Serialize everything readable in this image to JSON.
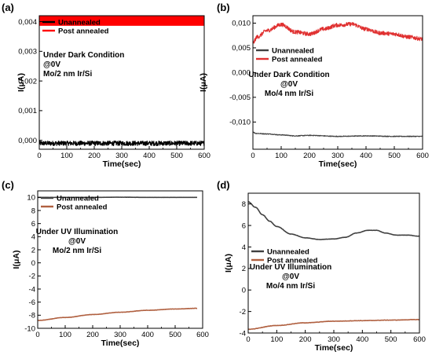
{
  "chart_data": [
    {
      "panel": "(a)",
      "type": "line",
      "xlabel": "Time(sec)",
      "ylabel": "I(μA)",
      "xlim": [
        0,
        600
      ],
      "ylim": [
        -0.0003,
        0.0042
      ],
      "xticks": [
        0,
        100,
        200,
        300,
        400,
        500,
        600
      ],
      "yticks": [
        0.0,
        0.001,
        0.002,
        0.003,
        0.004
      ],
      "ytick_labels": [
        "0,000",
        "0,001",
        "0,002",
        "0,003",
        "0,004"
      ],
      "legend": {
        "position": "top-left",
        "entries": [
          "Unannealed",
          "Post annealed"
        ]
      },
      "annotations": [
        "Under Dark Condition",
        "@0V",
        "Mo/2 nm Ir/Si"
      ],
      "series": [
        {
          "name": "Unannealed",
          "color": "#000000",
          "style": "noisy",
          "x": [
            0,
            100,
            200,
            300,
            400,
            500,
            600
          ],
          "y": [
            -0.0001,
            -0.0001,
            -0.0001,
            -0.0001,
            -0.0001,
            -0.0001,
            -0.0001
          ],
          "noise": 8e-05
        },
        {
          "name": "Post annealed",
          "color": "#ff0000",
          "style": "band",
          "x": [
            0,
            600
          ],
          "y": [
            0.00406,
            0.00406
          ],
          "noise": 0.0002
        }
      ]
    },
    {
      "panel": "(b)",
      "type": "line",
      "xlabel": "Time(sec)",
      "ylabel": "I(μA)",
      "xlim": [
        0,
        600
      ],
      "ylim": [
        -0.0155,
        0.0115
      ],
      "xticks": [
        0,
        100,
        200,
        300,
        400,
        500,
        600
      ],
      "yticks": [
        -0.01,
        -0.005,
        0.0,
        0.005,
        0.01
      ],
      "ytick_labels": [
        "-0,010",
        "-0,005",
        "0,000",
        "0,005",
        "0,010"
      ],
      "legend": {
        "position": "top-left",
        "entries": [
          "Unannealed",
          "Post annealed"
        ]
      },
      "annotations": [
        "Under Dark Condition",
        "@0V",
        "Mo/4 nm Ir/Si"
      ],
      "series": [
        {
          "name": "Unannealed",
          "color": "#404040",
          "style": "noisy",
          "x": [
            0,
            10,
            50,
            100,
            150,
            200,
            300,
            400,
            500,
            600
          ],
          "y": [
            -0.012,
            -0.0123,
            -0.0124,
            -0.0126,
            -0.0128,
            -0.0127,
            -0.0129,
            -0.0128,
            -0.0129,
            -0.0129
          ],
          "noise": 8e-05
        },
        {
          "name": "Post annealed",
          "color": "#e03030",
          "style": "noisy",
          "x": [
            0,
            15,
            50,
            100,
            150,
            200,
            250,
            300,
            350,
            400,
            450,
            500,
            550,
            600
          ],
          "y": [
            0.006,
            0.0072,
            0.0085,
            0.0097,
            0.0082,
            0.0078,
            0.0088,
            0.0096,
            0.0098,
            0.0088,
            0.008,
            0.0078,
            0.0072,
            0.0068
          ],
          "noise": 0.0004
        }
      ]
    },
    {
      "panel": "(c)",
      "type": "line",
      "xlabel": "Time(sec)",
      "ylabel": "I(μA)",
      "xlim": [
        0,
        600
      ],
      "ylim": [
        -10,
        11
      ],
      "xticks": [
        0,
        100,
        200,
        300,
        400,
        500,
        600
      ],
      "yticks": [
        -10,
        -8,
        -6,
        -4,
        -2,
        0,
        2,
        4,
        6,
        8,
        10
      ],
      "ytick_labels": [
        "-10",
        "-8",
        "-6",
        "-4",
        "-2",
        "0",
        "2",
        "4",
        "6",
        "8",
        "10"
      ],
      "legend": {
        "position": "top-left",
        "entries": [
          "Unannealed",
          "Post annealed"
        ]
      },
      "annotations": [
        "Under UV Illumination",
        "@0V",
        "Mo/2 nm Ir/Si"
      ],
      "series": [
        {
          "name": "Unannealed",
          "color": "#404040",
          "style": "smooth",
          "x": [
            0,
            100,
            200,
            300,
            400,
            500,
            580
          ],
          "y": [
            10.0,
            10.0,
            10.0,
            10.03,
            10.0,
            10.0,
            10.0
          ],
          "noise": 0.02
        },
        {
          "name": "Post annealed",
          "color": "#b06040",
          "style": "smooth",
          "x": [
            0,
            100,
            200,
            300,
            400,
            500,
            580
          ],
          "y": [
            -8.8,
            -8.35,
            -7.9,
            -7.55,
            -7.25,
            -7.05,
            -6.95
          ],
          "noise": 0.05
        }
      ]
    },
    {
      "panel": "(d)",
      "type": "line",
      "xlabel": "Time(sec)",
      "ylabel": "I(μA)",
      "xlim": [
        0,
        600
      ],
      "ylim": [
        -4,
        9
      ],
      "xticks": [
        0,
        100,
        200,
        300,
        400,
        500,
        600
      ],
      "yticks": [
        -4,
        -2,
        0,
        2,
        4,
        6,
        8
      ],
      "ytick_labels": [
        "-4",
        "-2",
        "0",
        "2",
        "4",
        "6",
        "8"
      ],
      "legend": {
        "position": "middle-left",
        "entries": [
          "Unannealed",
          "Post annealed"
        ]
      },
      "annotations": [
        "Under UV Illumination",
        "@0V",
        "Mo/4 nm Ir/Si"
      ],
      "series": [
        {
          "name": "Unannealed",
          "color": "#404040",
          "style": "smooth",
          "x": [
            0,
            25,
            50,
            75,
            100,
            150,
            200,
            250,
            300,
            340,
            380,
            420,
            450,
            480,
            520,
            560,
            600
          ],
          "y": [
            8.2,
            7.7,
            7.0,
            6.4,
            5.9,
            5.2,
            4.85,
            4.7,
            4.75,
            4.9,
            5.3,
            5.55,
            5.55,
            5.3,
            5.1,
            5.1,
            5.0
          ],
          "noise": 0.03
        },
        {
          "name": "Post annealed",
          "color": "#b06040",
          "style": "smooth",
          "x": [
            0,
            100,
            200,
            300,
            400,
            500,
            600
          ],
          "y": [
            -3.65,
            -3.3,
            -3.05,
            -2.9,
            -2.85,
            -2.8,
            -2.75
          ],
          "noise": 0.04
        }
      ]
    }
  ]
}
